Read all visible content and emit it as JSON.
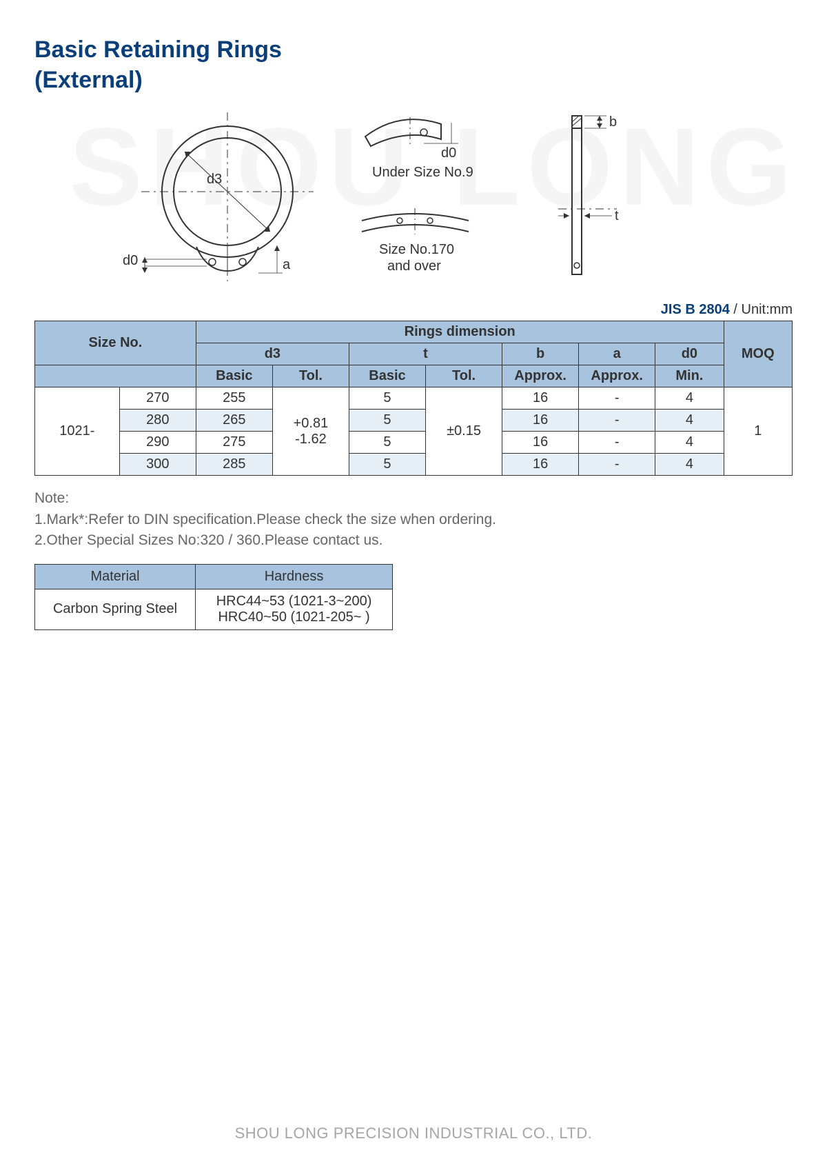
{
  "title_line1": "Basic Retaining Rings",
  "title_line2": "(External)",
  "watermark": "SHOU LONG",
  "diagram": {
    "main_ring": {
      "d3": "d3",
      "d0": "d0",
      "a": "a"
    },
    "under9_label": "Under Size No.9",
    "under9_d0": "d0",
    "over170_label1": "Size No.170",
    "over170_label2": "and over",
    "side_b": "b",
    "side_t": "t"
  },
  "spec_code": "JIS B 2804",
  "spec_unit": " / Unit:mm",
  "table": {
    "header_top": {
      "rings_dim": "Rings dimension"
    },
    "header_mid": {
      "size_no": "Size No.",
      "d3": "d3",
      "t": "t",
      "b": "b",
      "a": "a",
      "d0": "d0",
      "moq": "MOQ"
    },
    "header_sub": {
      "basic1": "Basic",
      "tol1": "Tol.",
      "basic2": "Basic",
      "tol2": "Tol.",
      "approx1": "Approx.",
      "approx2": "Approx.",
      "min": "Min."
    },
    "prefix": "1021-",
    "d3_tol_line1": "+0.81",
    "d3_tol_line2": "-1.62",
    "t_tol": "±0.15",
    "moq_val": "1",
    "rows": [
      {
        "size": "270",
        "d3": "255",
        "t": "5",
        "b": "16",
        "a": "-",
        "d0": "4",
        "shade": false
      },
      {
        "size": "280",
        "d3": "265",
        "t": "5",
        "b": "16",
        "a": "-",
        "d0": "4",
        "shade": true
      },
      {
        "size": "290",
        "d3": "275",
        "t": "5",
        "b": "16",
        "a": "-",
        "d0": "4",
        "shade": false
      },
      {
        "size": "300",
        "d3": "285",
        "t": "5",
        "b": "16",
        "a": "-",
        "d0": "4",
        "shade": true
      }
    ]
  },
  "note": {
    "title": "Note:",
    "line1": "1.Mark*:Refer to DIN specification.Please check the size when ordering.",
    "line2": "2.Other Special Sizes No:320 / 360.Please contact us."
  },
  "material_table": {
    "h_material": "Material",
    "h_hardness": "Hardness",
    "material": "Carbon Spring Steel",
    "hardness_line1": "HRC44~53 (1021-3~200)",
    "hardness_line2": "HRC40~50 (1021-205~  )"
  },
  "footer": "SHOU LONG PRECISION INDUSTRIAL CO., LTD.",
  "colors": {
    "title": "#0a3f7a",
    "header_bg": "#a8c3dd",
    "shade_bg": "#e6eef6",
    "border": "#333333",
    "note_text": "#666666",
    "footer_text": "#a6a6a6",
    "watermark": "#f5f5f5"
  }
}
